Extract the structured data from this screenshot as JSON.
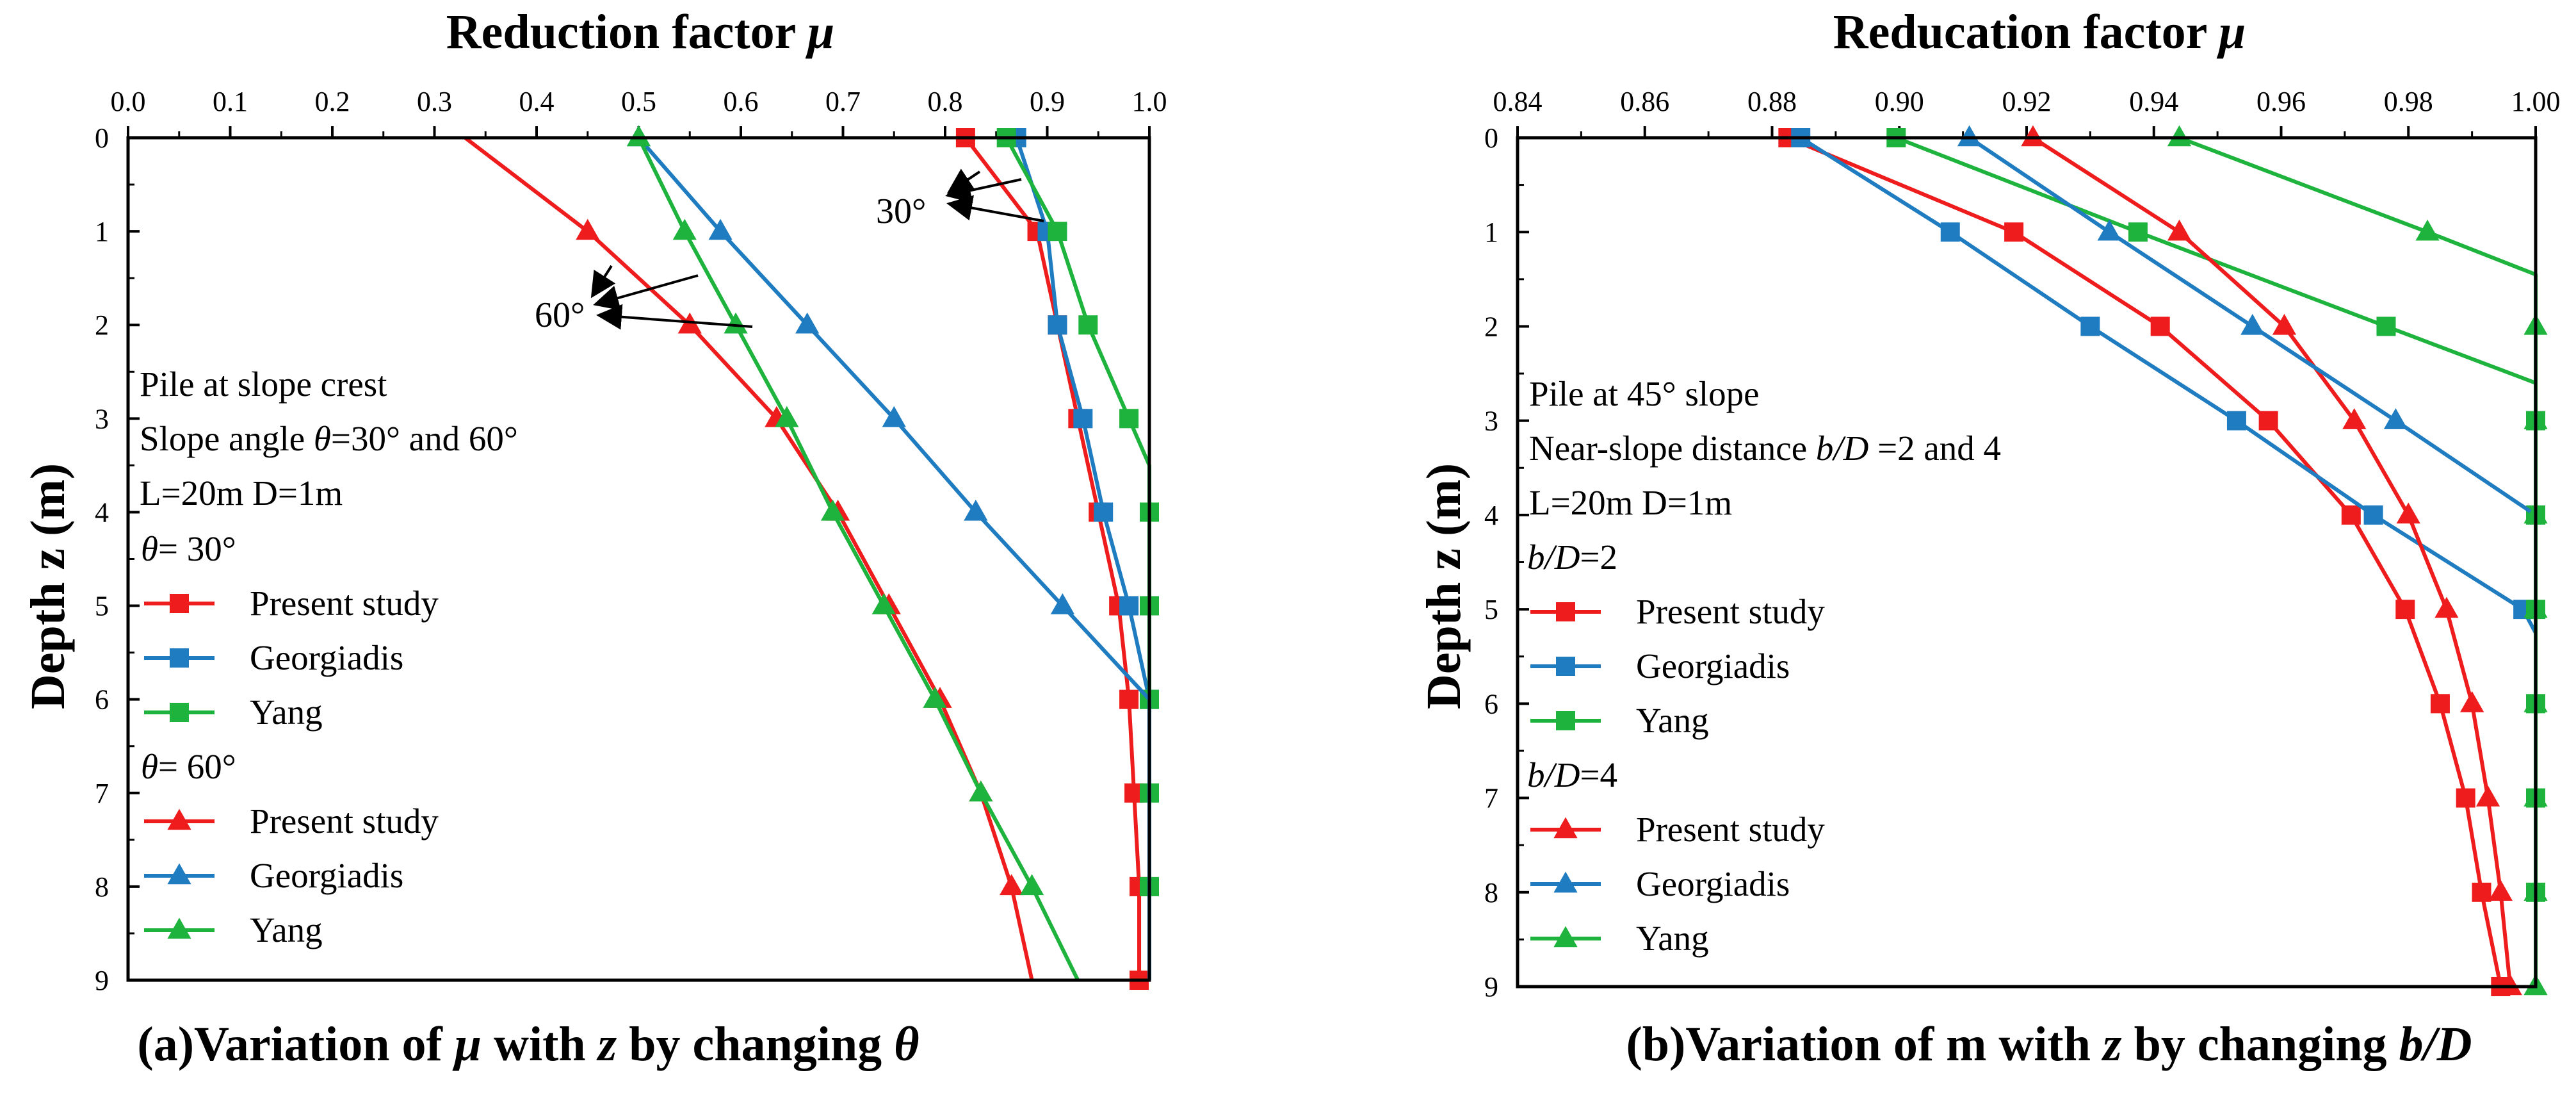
{
  "colors": {
    "present": "#ee1c1c",
    "georgiadis": "#1f7cc0",
    "yang": "#1db33c",
    "axis": "#000000"
  },
  "chart_data": [
    {
      "type": "line",
      "title": "Reduction factor μ",
      "title_text": "Reduction factor ",
      "title_symbol": "μ",
      "ylabel": "Depth z (m)",
      "xlim": [
        0.0,
        1.0
      ],
      "ylim": [
        0,
        9
      ],
      "x_axis_position": "top",
      "y_inverted": true,
      "xticks": [
        "0.0",
        "0.1",
        "0.2",
        "0.3",
        "0.4",
        "0.5",
        "0.6",
        "0.7",
        "0.8",
        "0.9",
        "1.0"
      ],
      "yticks": [
        "0",
        "1",
        "2",
        "3",
        "4",
        "5",
        "6",
        "7",
        "8",
        "9"
      ],
      "caption": "(a)Variation of μ with z by changing θ",
      "caption_parts": [
        "(a)Variation of ",
        "μ",
        " with ",
        "z",
        " by changing ",
        "θ"
      ],
      "notes": [
        "Pile at slope crest",
        "L=20m D=1m"
      ],
      "note_slope_parts": [
        "Slope angle ",
        "θ",
        "=30° and 60°"
      ],
      "annotations": [
        {
          "text": "30°",
          "points_to": "θ = 30° curves"
        },
        {
          "text": "60°",
          "points_to": "θ = 60° curves"
        }
      ],
      "legend_groups": [
        {
          "header_sym": "θ",
          "header_rest": "= 30°",
          "marker": "square",
          "entries": [
            "Present study",
            "Georgiadis",
            "Yang"
          ]
        },
        {
          "header_sym": "θ",
          "header_rest": "= 60°",
          "marker": "triangle",
          "entries": [
            "Present study",
            "Georgiadis",
            "Yang"
          ]
        }
      ],
      "series": [
        {
          "name": "Present study",
          "group": "θ = 30°",
          "marker": "square",
          "color_key": "present",
          "points": [
            [
              0.82,
              0
            ],
            [
              0.89,
              1
            ],
            [
              0.91,
              2
            ],
            [
              0.93,
              3
            ],
            [
              0.95,
              4
            ],
            [
              0.97,
              5
            ],
            [
              0.98,
              6
            ],
            [
              0.985,
              7
            ],
            [
              0.99,
              8
            ],
            [
              0.99,
              9
            ]
          ]
        },
        {
          "name": "Georgiadis",
          "group": "θ = 30°",
          "marker": "square",
          "color_key": "georgiadis",
          "points": [
            [
              0.87,
              0
            ],
            [
              0.9,
              1
            ],
            [
              0.91,
              2
            ],
            [
              0.935,
              3
            ],
            [
              0.955,
              4
            ],
            [
              0.98,
              5
            ],
            [
              1.0,
              6
            ]
          ],
          "tail": [
            [
              1.0,
              9
            ]
          ]
        },
        {
          "name": "Yang",
          "group": "θ = 30°",
          "marker": "square",
          "color_key": "yang",
          "points": [
            [
              0.86,
              0
            ],
            [
              0.91,
              1
            ],
            [
              0.94,
              2
            ],
            [
              0.98,
              3
            ],
            [
              1.0,
              4
            ],
            [
              1.0,
              5
            ],
            [
              1.0,
              6
            ],
            [
              1.0,
              7
            ],
            [
              1.0,
              8
            ]
          ],
          "line": [
            [
              0.86,
              0
            ],
            [
              0.91,
              1
            ],
            [
              0.94,
              2
            ],
            [
              0.98,
              3
            ],
            [
              1.0,
              3.5
            ],
            [
              1.0,
              9
            ]
          ]
        },
        {
          "name": "Present study",
          "group": "θ = 60°",
          "marker": "triangle",
          "color_key": "present",
          "points": [
            [
              0.45,
              1
            ],
            [
              0.55,
              2
            ],
            [
              0.635,
              3
            ],
            [
              0.695,
              4
            ],
            [
              0.745,
              5
            ],
            [
              0.795,
              6
            ],
            [
              0.835,
              7
            ],
            [
              0.865,
              8
            ]
          ],
          "line": [
            [
              0.33,
              0
            ],
            [
              0.45,
              1
            ],
            [
              0.55,
              2
            ],
            [
              0.635,
              3
            ],
            [
              0.695,
              4
            ],
            [
              0.745,
              5
            ],
            [
              0.795,
              6
            ],
            [
              0.835,
              7
            ],
            [
              0.865,
              8
            ],
            [
              0.885,
              9
            ]
          ]
        },
        {
          "name": "Georgiadis",
          "group": "θ = 60°",
          "marker": "triangle",
          "color_key": "georgiadis",
          "points": [
            [
              0.5,
              0
            ],
            [
              0.58,
              1
            ],
            [
              0.665,
              2
            ],
            [
              0.75,
              3
            ],
            [
              0.83,
              4
            ],
            [
              0.915,
              5
            ]
          ],
          "line": [
            [
              0.5,
              0
            ],
            [
              0.58,
              1
            ],
            [
              0.665,
              2
            ],
            [
              0.75,
              3
            ],
            [
              0.83,
              4
            ],
            [
              0.915,
              5
            ],
            [
              1.0,
              6
            ],
            [
              1.0,
              9
            ]
          ]
        },
        {
          "name": "Yang",
          "group": "θ = 60°",
          "marker": "triangle",
          "color_key": "yang",
          "points": [
            [
              0.5,
              0
            ],
            [
              0.545,
              1
            ],
            [
              0.595,
              2
            ],
            [
              0.645,
              3
            ],
            [
              0.69,
              4
            ],
            [
              0.74,
              5
            ],
            [
              0.79,
              6
            ],
            [
              0.835,
              7
            ],
            [
              0.885,
              8
            ]
          ],
          "line": [
            [
              0.5,
              0
            ],
            [
              0.545,
              1
            ],
            [
              0.595,
              2
            ],
            [
              0.645,
              3
            ],
            [
              0.69,
              4
            ],
            [
              0.74,
              5
            ],
            [
              0.79,
              6
            ],
            [
              0.835,
              7
            ],
            [
              0.885,
              8
            ],
            [
              0.93,
              9
            ]
          ]
        }
      ]
    },
    {
      "type": "line",
      "title": "Reducation factor μ",
      "title_text": "Reducation factor ",
      "title_symbol": "μ",
      "ylabel": "Depth z (m)",
      "xlim": [
        0.84,
        1.0
      ],
      "ylim": [
        0,
        9
      ],
      "x_axis_position": "top",
      "y_inverted": true,
      "xticks": [
        "0.84",
        "0.86",
        "0.88",
        "0.90",
        "0.92",
        "0.94",
        "0.96",
        "0.98",
        "1.00"
      ],
      "yticks": [
        "0",
        "1",
        "2",
        "3",
        "4",
        "5",
        "6",
        "7",
        "8",
        "9"
      ],
      "caption": "(b)Variation of m with z by changing b/D",
      "caption_parts": [
        "(b)Variation of m with ",
        "z",
        " by changing ",
        "b/D"
      ],
      "notes": [
        "Pile at 45° slope",
        "L=20m D=1m"
      ],
      "note_dist_parts": [
        "Near-slope distance ",
        "b/D",
        " =2 and 4"
      ],
      "legend_groups": [
        {
          "header_sym": "b/D",
          "header_rest": "=2",
          "marker": "square",
          "entries": [
            "Present study",
            "Georgiadis",
            "Yang"
          ]
        },
        {
          "header_sym": "b/D",
          "header_rest": "=4",
          "marker": "triangle",
          "entries": [
            "Present study",
            "Georgiadis",
            "Yang"
          ]
        }
      ],
      "series": [
        {
          "name": "Present study",
          "group": "b/D=2",
          "marker": "square",
          "color_key": "present",
          "points": [
            [
              0.8825,
              0
            ],
            [
              0.918,
              1
            ],
            [
              0.941,
              2
            ],
            [
              0.958,
              3
            ],
            [
              0.971,
              4
            ],
            [
              0.9795,
              5
            ],
            [
              0.985,
              6
            ],
            [
              0.989,
              7
            ],
            [
              0.9915,
              8
            ],
            [
              0.9945,
              9
            ]
          ]
        },
        {
          "name": "Georgiadis",
          "group": "b/D=2",
          "marker": "square",
          "color_key": "georgiadis",
          "points": [
            [
              0.8845,
              0
            ],
            [
              0.908,
              1
            ],
            [
              0.93,
              2
            ],
            [
              0.953,
              3
            ],
            [
              0.9745,
              4
            ],
            [
              0.998,
              5
            ]
          ],
          "line": [
            [
              0.8845,
              0
            ],
            [
              0.908,
              1
            ],
            [
              0.93,
              2
            ],
            [
              0.953,
              3
            ],
            [
              0.9745,
              4
            ],
            [
              0.998,
              5
            ],
            [
              1.0,
              5.25
            ],
            [
              1.0,
              9
            ]
          ]
        },
        {
          "name": "Yang",
          "group": "b/D=2",
          "marker": "square",
          "color_key": "yang",
          "points": [
            [
              0.8995,
              0
            ],
            [
              0.9375,
              1
            ],
            [
              0.9765,
              2
            ],
            [
              1.0,
              3
            ],
            [
              1.0,
              4
            ],
            [
              1.0,
              5
            ],
            [
              1.0,
              6
            ],
            [
              1.0,
              7
            ],
            [
              1.0,
              8
            ]
          ],
          "line": [
            [
              0.8995,
              0
            ],
            [
              0.9375,
              1
            ],
            [
              0.9765,
              2
            ],
            [
              1.0,
              2.6
            ],
            [
              1.0,
              9
            ]
          ]
        },
        {
          "name": "Present study",
          "group": "b/D=4",
          "marker": "triangle",
          "color_key": "present",
          "points": [
            [
              0.921,
              0
            ],
            [
              0.944,
              1
            ],
            [
              0.9605,
              2
            ],
            [
              0.9715,
              3
            ],
            [
              0.98,
              4
            ],
            [
              0.986,
              5
            ],
            [
              0.99,
              6
            ],
            [
              0.9925,
              7
            ],
            [
              0.9945,
              8
            ],
            [
              0.996,
              9
            ]
          ]
        },
        {
          "name": "Georgiadis",
          "group": "b/D=4",
          "marker": "triangle",
          "color_key": "georgiadis",
          "points": [
            [
              0.911,
              0
            ],
            [
              0.933,
              1
            ],
            [
              0.9555,
              2
            ],
            [
              0.978,
              3
            ]
          ],
          "line": [
            [
              0.911,
              0
            ],
            [
              0.933,
              1
            ],
            [
              0.9555,
              2
            ],
            [
              0.978,
              3
            ],
            [
              1.0,
              4
            ],
            [
              1.0,
              9
            ]
          ]
        },
        {
          "name": "Yang",
          "group": "b/D=4",
          "marker": "triangle",
          "color_key": "yang",
          "points": [
            [
              0.944,
              0
            ],
            [
              0.983,
              1
            ],
            [
              1.0,
              2
            ],
            [
              1.0,
              3
            ],
            [
              1.0,
              4
            ],
            [
              1.0,
              5
            ],
            [
              1.0,
              6
            ],
            [
              1.0,
              7
            ],
            [
              1.0,
              8
            ],
            [
              1.0,
              9
            ]
          ],
          "line": [
            [
              0.944,
              0
            ],
            [
              0.983,
              1
            ],
            [
              1.0,
              1.45
            ],
            [
              1.0,
              9
            ]
          ]
        }
      ]
    }
  ]
}
